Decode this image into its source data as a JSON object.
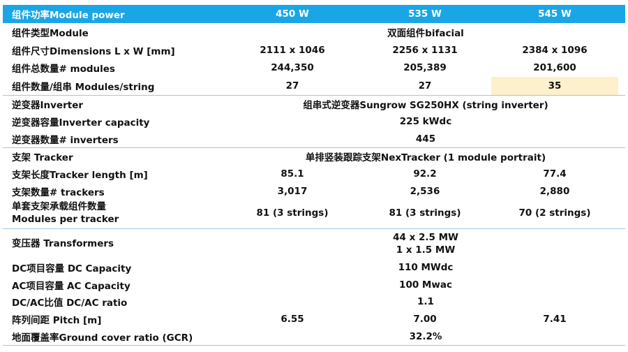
{
  "header": {
    "label": "组件功率Module power",
    "col1": "450 W",
    "col2": "535 W",
    "col3": "545 W"
  },
  "rows": {
    "module_type": {
      "label": "组件类型Module",
      "value": "双面组件bifacial"
    },
    "dimensions": {
      "label": "组件尺寸Dimensions L x W [mm]",
      "v1": "2111 x 1046",
      "v2": "2256 x 1131",
      "v3": "2384 x 1096"
    },
    "modules": {
      "label": "组件总数量# modules",
      "v1": "244,350",
      "v2": "205,389",
      "v3": "201,600"
    },
    "modules_string": {
      "label": "组件数量/组串 Modules/string",
      "v1": "27",
      "v2": "27",
      "v3": "35"
    },
    "inverter": {
      "label": "逆变器Inverter",
      "value": "组串式逆变器Sungrow SG250HX (string inverter)"
    },
    "inverter_capacity": {
      "label": "逆变器容量Inverter capacity",
      "value": "225 kWdc"
    },
    "inverters": {
      "label": "逆变器数量# inverters",
      "value": "445"
    },
    "tracker": {
      "label": "支架 Tracker",
      "value": "单排竖装跟踪支架NexTracker (1 module portrait)"
    },
    "tracker_length": {
      "label": "支架长度Tracker length [m]",
      "v1": "85.1",
      "v2": "92.2",
      "v3": "77.4"
    },
    "trackers": {
      "label": "支架数量# trackers",
      "v1": "3,017",
      "v2": "2,536",
      "v3": "2,880"
    },
    "modules_tracker": {
      "label1": "单套支架承载组件数量",
      "label2": "Modules per tracker",
      "v1": "81 (3 strings)",
      "v2": "81 (3 strings)",
      "v3": "70 (2 strings)"
    },
    "transformers": {
      "label": "变压器 Transformers",
      "value1": "44 x 2.5 MW",
      "value2": "1 x 1.5 MW"
    },
    "dc_capacity": {
      "label": "DC项目容量 DC Capacity",
      "value": "110 MWdc"
    },
    "ac_capacity": {
      "label": "AC项目容量 AC Capacity",
      "value": "100 Mwac"
    },
    "dcac_ratio": {
      "label": "DC/AC比值 DC/AC ratio",
      "value": "1.1"
    },
    "pitch": {
      "label": "阵列间距 Pitch [m]",
      "v1": "6.55",
      "v2": "7.00",
      "v3": "7.41"
    },
    "gcr": {
      "label": "地面覆盖率Ground cover ratio (GCR)",
      "value": "32.2%"
    }
  },
  "colors": {
    "header_bg": "#1aa6e6",
    "highlight": "#fdf0cc",
    "separator": "#9cc7e0"
  }
}
